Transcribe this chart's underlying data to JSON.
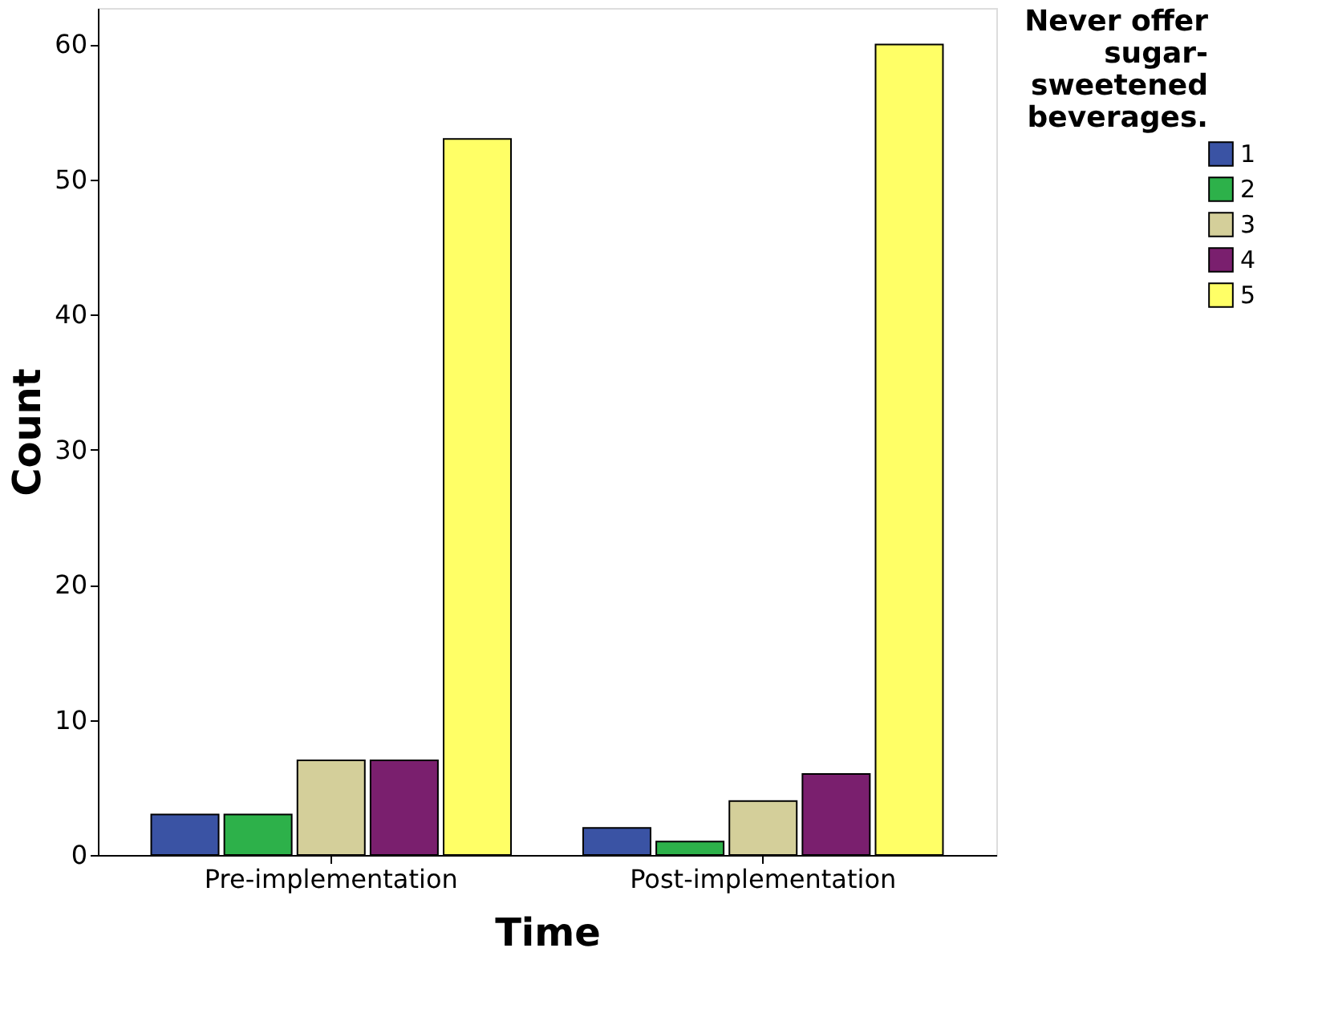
{
  "chart_data": {
    "type": "bar",
    "xlabel": "Time",
    "ylabel": "Count",
    "legend_title": "Never offer sugar-sweetened beverages.",
    "legend": "top right",
    "grid": false,
    "categories": [
      "Pre-implementation",
      "Post-implementation"
    ],
    "series": [
      {
        "name": "1",
        "color": "#3a53a4",
        "values": [
          3,
          2
        ]
      },
      {
        "name": "2",
        "color": "#2db14a",
        "values": [
          3,
          1
        ]
      },
      {
        "name": "3",
        "color": "#d4cf9a",
        "values": [
          7,
          4
        ]
      },
      {
        "name": "4",
        "color": "#7a1f6e",
        "values": [
          7,
          6
        ]
      },
      {
        "name": "5",
        "color": "#ffff66",
        "values": [
          53,
          60
        ]
      }
    ],
    "ylim": [
      0,
      62.7
    ],
    "yticks": [
      0,
      10,
      20,
      30,
      40,
      50,
      60
    ]
  }
}
